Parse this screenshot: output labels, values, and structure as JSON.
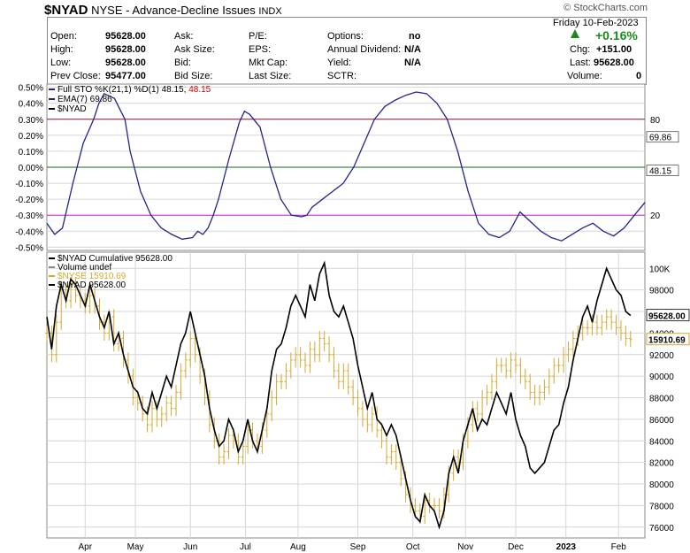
{
  "header": {
    "symbol": "$NYAD",
    "description": "NYSE - Advance-Decline Issues",
    "exchange": "INDX",
    "watermark": "© StockCharts.com"
  },
  "quote": {
    "date": "Friday  10-Feb-2023",
    "change_pct": "+0.16%",
    "fields": [
      {
        "label": "Open:",
        "value": "95628.00"
      },
      {
        "label": "High:",
        "value": "95628.00"
      },
      {
        "label": "Low:",
        "value": "95628.00"
      },
      {
        "label": "Prev Close:",
        "value": "95477.00"
      },
      {
        "label": "Ask:",
        "value": ""
      },
      {
        "label": "Ask Size:",
        "value": ""
      },
      {
        "label": "Bid:",
        "value": ""
      },
      {
        "label": "Bid Size:",
        "value": ""
      },
      {
        "label": "P/E:",
        "value": ""
      },
      {
        "label": "EPS:",
        "value": ""
      },
      {
        "label": "Mkt Cap:",
        "value": ""
      },
      {
        "label": "Last Size:",
        "value": ""
      },
      {
        "label": "Options:",
        "value": "no"
      },
      {
        "label": "Annual Dividend:",
        "value": "N/A"
      },
      {
        "label": "Yield:",
        "value": "N/A"
      },
      {
        "label": "SCTR:",
        "value": ""
      },
      {
        "label": "Chg:",
        "value": "+151.00"
      },
      {
        "label": "Last:",
        "value": "95628.00"
      },
      {
        "label": "Volume:",
        "value": "0"
      }
    ]
  },
  "colors": {
    "sto_line": "#24248a",
    "ref_high": "#8a1a3a",
    "ref_mid": "#1a6a1a",
    "ref_low": "#cc22cc",
    "cumulative": "#000000",
    "nyse_bars": "#d2a92e",
    "grid": "#d6d6d6"
  },
  "chart_data": [
    {
      "type": "line",
      "name": "Full Stochastic panel",
      "legend": [
        {
          "label": "Full STO %K(21,1) %D(1) 48.15, ",
          "value": "48.15",
          "color": "#24248a",
          "value_color": "#cc0000"
        },
        {
          "label": "EMA(7) 69.86",
          "value": "",
          "color": "#24248a",
          "value_color": ""
        },
        {
          "label": "$NYAD",
          "value": "",
          "color": "#000000",
          "value_color": ""
        }
      ],
      "y_left_ticks": [
        "0.50%",
        "0.40%",
        "0.30%",
        "0.20%",
        "0.10%",
        "0.00%",
        "-0.10%",
        "-0.20%",
        "-0.30%",
        "-0.40%",
        "-0.50%"
      ],
      "y_left_values": [
        0.5,
        0.4,
        0.3,
        0.2,
        0.1,
        0.0,
        -0.1,
        -0.2,
        -0.3,
        -0.4,
        -0.5
      ],
      "ylim": [
        -0.52,
        0.52
      ],
      "ref_lines": [
        {
          "level": 0.3,
          "label": "80",
          "color_key": "ref_high"
        },
        {
          "level": 0.0,
          "label": "",
          "color_key": "ref_mid"
        },
        {
          "level": -0.3,
          "label": "20",
          "color_key": "ref_low"
        }
      ],
      "last_labels": [
        {
          "text": "69.86",
          "level": 0.19
        },
        {
          "text": "48.15",
          "level": -0.02
        }
      ],
      "x_index_range": [
        0,
        230
      ],
      "series": [
        {
          "x": [
            0,
            3,
            6,
            10,
            14,
            18,
            20,
            22,
            26,
            30,
            32,
            36,
            40,
            44,
            48,
            52,
            56,
            58,
            60,
            62,
            64,
            66,
            70,
            74,
            76,
            78,
            82,
            86,
            90,
            94,
            98,
            100,
            102,
            106,
            110,
            114,
            116,
            118,
            122,
            126,
            130,
            134,
            138,
            142,
            146,
            150,
            154,
            158,
            162,
            166,
            170,
            174,
            178,
            182,
            186,
            190,
            194,
            198,
            202,
            206,
            210,
            214,
            218,
            222,
            226,
            230
          ],
          "y": [
            -0.35,
            -0.42,
            -0.38,
            -0.1,
            0.15,
            0.3,
            0.4,
            0.46,
            0.43,
            0.3,
            0.1,
            -0.15,
            -0.3,
            -0.38,
            -0.42,
            -0.45,
            -0.44,
            -0.4,
            -0.42,
            -0.38,
            -0.3,
            -0.2,
            0.05,
            0.28,
            0.35,
            0.33,
            0.25,
            0.0,
            -0.2,
            -0.3,
            -0.31,
            -0.3,
            -0.25,
            -0.2,
            -0.15,
            -0.1,
            -0.05,
            0.0,
            0.15,
            0.3,
            0.38,
            0.42,
            0.45,
            0.47,
            0.46,
            0.4,
            0.3,
            0.1,
            -0.15,
            -0.35,
            -0.42,
            -0.44,
            -0.4,
            -0.28,
            -0.34,
            -0.4,
            -0.44,
            -0.46,
            -0.42,
            -0.38,
            -0.35,
            -0.4,
            -0.43,
            -0.38,
            -0.3,
            -0.22
          ]
        }
      ]
    },
    {
      "type": "line",
      "name": "Cumulative panel",
      "legend": [
        {
          "label": "$NYAD Cumulative 95628.00",
          "value": "",
          "color": "#000000",
          "value_color": ""
        },
        {
          "label": "Volume undef",
          "value": "",
          "color": "#8a8a8a",
          "value_color": ""
        },
        {
          "label": "$NYSE 15910.69",
          "value": "",
          "color": "#d2a92e",
          "value_color": ""
        },
        {
          "label": "$NYAD 95628.00",
          "value": "",
          "color": "#000000",
          "value_color": ""
        }
      ],
      "y_right_ticks": [
        "100K",
        "98000",
        "96000",
        "94000",
        "92000",
        "90000",
        "88000",
        "86000",
        "84000",
        "82000",
        "80000",
        "78000",
        "76000"
      ],
      "y_right_values": [
        100000,
        98000,
        96000,
        94000,
        92000,
        90000,
        88000,
        86000,
        84000,
        82000,
        80000,
        78000,
        76000
      ],
      "ylim": [
        75000,
        101500
      ],
      "last_labels": [
        {
          "text": "95628.00",
          "level": 95628
        },
        {
          "text": "15910.69",
          "level": 93400
        }
      ],
      "x_labels": [
        "Apr",
        "May",
        "Jun",
        "Jul",
        "Aug",
        "Sep",
        "Oct",
        "Nov",
        "Dec",
        "2023",
        "Feb"
      ],
      "x_label_positions": [
        16,
        37,
        60,
        83,
        105,
        130,
        153,
        175,
        196,
        217,
        239
      ],
      "x_index_range": [
        0,
        250
      ],
      "series": [
        {
          "name": "$NYAD Cumulative",
          "x": [
            0,
            2,
            4,
            6,
            8,
            10,
            12,
            14,
            16,
            18,
            20,
            22,
            24,
            26,
            28,
            30,
            32,
            34,
            36,
            38,
            40,
            42,
            44,
            46,
            48,
            50,
            52,
            54,
            56,
            58,
            60,
            62,
            64,
            66,
            68,
            70,
            72,
            74,
            76,
            78,
            80,
            82,
            84,
            86,
            88,
            90,
            92,
            94,
            96,
            98,
            100,
            102,
            104,
            106,
            108,
            110,
            112,
            114,
            116,
            118,
            120,
            122,
            124,
            126,
            128,
            130,
            132,
            134,
            136,
            138,
            140,
            142,
            144,
            146,
            148,
            150,
            152,
            154,
            156,
            158,
            160,
            162,
            164,
            166,
            168,
            170,
            172,
            174,
            176,
            178,
            180,
            182,
            184,
            186,
            188,
            190,
            192,
            194,
            196,
            198,
            200,
            202,
            204,
            206,
            208,
            210,
            212,
            214,
            216,
            218,
            220,
            222,
            224,
            226,
            228,
            230,
            232,
            234,
            236,
            238,
            240,
            242,
            244
          ],
          "y": [
            95500,
            92500,
            96500,
            98500,
            97000,
            99000,
            98500,
            97500,
            96500,
            98500,
            97000,
            95500,
            94500,
            96000,
            93000,
            94000,
            92000,
            90500,
            89000,
            88500,
            87000,
            86500,
            88500,
            87000,
            88500,
            90000,
            89000,
            91000,
            93000,
            94000,
            96000,
            94000,
            92000,
            90000,
            87000,
            85000,
            83500,
            84000,
            86000,
            85000,
            83000,
            84000,
            86000,
            84000,
            83000,
            85000,
            87000,
            90500,
            92500,
            93000,
            94500,
            96500,
            97500,
            96500,
            95500,
            98500,
            97000,
            99500,
            100500,
            97500,
            96000,
            95500,
            96500,
            95000,
            93500,
            91000,
            89000,
            87000,
            88500,
            86000,
            85500,
            84500,
            85500,
            84500,
            82500,
            80500,
            78500,
            77000,
            76500,
            79000,
            78000,
            77500,
            76000,
            77500,
            81000,
            82500,
            81000,
            84000,
            85500,
            87000,
            85000,
            86000,
            85500,
            87000,
            88500,
            87500,
            86500,
            88500,
            86000,
            84500,
            83500,
            81500,
            81000,
            81500,
            82000,
            83500,
            85000,
            85500,
            87500,
            89000,
            91500,
            93500,
            95500,
            96500,
            95000,
            97000,
            98500,
            100000,
            99000,
            98000,
            97500,
            96000,
            95628
          ]
        },
        {
          "name": "$NYSE",
          "x": [
            0,
            2,
            4,
            6,
            8,
            10,
            12,
            14,
            16,
            18,
            20,
            22,
            24,
            26,
            28,
            30,
            32,
            34,
            36,
            38,
            40,
            42,
            44,
            46,
            48,
            50,
            52,
            54,
            56,
            58,
            60,
            62,
            64,
            66,
            68,
            70,
            72,
            74,
            76,
            78,
            80,
            82,
            84,
            86,
            88,
            90,
            92,
            94,
            96,
            98,
            100,
            102,
            104,
            106,
            108,
            110,
            112,
            114,
            116,
            118,
            120,
            122,
            124,
            126,
            128,
            130,
            132,
            134,
            136,
            138,
            140,
            142,
            144,
            146,
            148,
            150,
            152,
            154,
            156,
            158,
            160,
            162,
            164,
            166,
            168,
            170,
            172,
            174,
            176,
            178,
            180,
            182,
            184,
            186,
            188,
            190,
            192,
            194,
            196,
            198,
            200,
            202,
            204,
            206,
            208,
            210,
            212,
            214,
            216,
            218,
            220,
            222,
            224,
            226,
            228,
            230,
            232,
            234,
            236,
            238,
            240,
            242,
            244
          ],
          "y": [
            94000,
            92000,
            95000,
            98000,
            97000,
            98500,
            97500,
            97000,
            96500,
            97500,
            96500,
            95000,
            94000,
            95500,
            93000,
            93500,
            91500,
            90000,
            88000,
            87500,
            86500,
            85500,
            87000,
            86000,
            86500,
            87500,
            87000,
            88500,
            90500,
            91500,
            93500,
            92000,
            90000,
            88000,
            85500,
            84000,
            82500,
            83000,
            84500,
            84000,
            82500,
            83500,
            85000,
            84000,
            83500,
            85000,
            86500,
            88000,
            89500,
            89500,
            90500,
            91500,
            92000,
            91500,
            91000,
            92500,
            92000,
            93500,
            93000,
            92000,
            90500,
            89500,
            90500,
            89000,
            88000,
            87000,
            86000,
            85500,
            86500,
            85000,
            84000,
            82500,
            83000,
            82000,
            80500,
            79000,
            78000,
            77500,
            77000,
            78500,
            78000,
            78000,
            77500,
            79000,
            81000,
            82500,
            82000,
            84000,
            85500,
            87000,
            86500,
            88000,
            88500,
            89500,
            91000,
            91000,
            90500,
            91500,
            91000,
            90000,
            89500,
            88500,
            88000,
            88500,
            89000,
            90000,
            91000,
            91000,
            92000,
            92500,
            93500,
            94000,
            94500,
            94500,
            95000,
            94500,
            95000,
            95500,
            95000,
            94500,
            94000,
            93500,
            93400
          ]
        }
      ]
    }
  ]
}
